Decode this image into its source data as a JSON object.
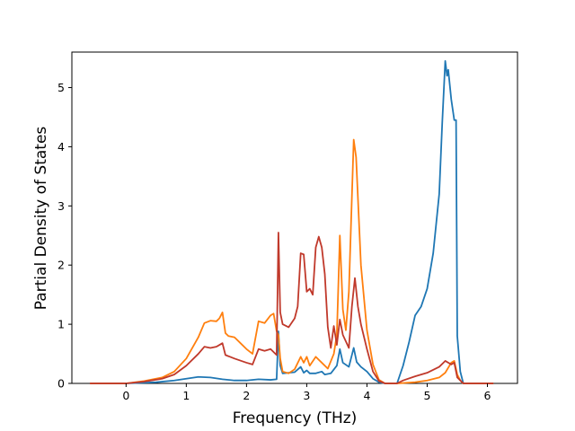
{
  "chart_data": {
    "type": "line",
    "title": "",
    "xlabel": "Frequency (THz)",
    "ylabel": "Partial Density of States",
    "xlim": [
      -0.9,
      6.5
    ],
    "ylim": [
      0,
      5.6
    ],
    "xticks": [
      0,
      1,
      2,
      3,
      4,
      5,
      6
    ],
    "yticks": [
      0,
      1,
      2,
      3,
      4,
      5
    ],
    "grid": false,
    "legend": "none",
    "series": [
      {
        "color": "#1f77b4",
        "points": [
          [
            -0.6,
            0
          ],
          [
            0.0,
            0.0
          ],
          [
            0.5,
            0.02
          ],
          [
            0.8,
            0.05
          ],
          [
            1.0,
            0.08
          ],
          [
            1.2,
            0.11
          ],
          [
            1.4,
            0.1
          ],
          [
            1.6,
            0.07
          ],
          [
            1.8,
            0.05
          ],
          [
            2.0,
            0.05
          ],
          [
            2.2,
            0.07
          ],
          [
            2.4,
            0.06
          ],
          [
            2.5,
            0.07
          ],
          [
            2.53,
            0.88
          ],
          [
            2.56,
            0.3
          ],
          [
            2.6,
            0.17
          ],
          [
            2.8,
            0.19
          ],
          [
            2.9,
            0.28
          ],
          [
            2.95,
            0.18
          ],
          [
            3.0,
            0.22
          ],
          [
            3.05,
            0.17
          ],
          [
            3.15,
            0.17
          ],
          [
            3.25,
            0.2
          ],
          [
            3.3,
            0.15
          ],
          [
            3.4,
            0.17
          ],
          [
            3.5,
            0.3
          ],
          [
            3.55,
            0.58
          ],
          [
            3.6,
            0.35
          ],
          [
            3.7,
            0.28
          ],
          [
            3.78,
            0.6
          ],
          [
            3.83,
            0.36
          ],
          [
            3.9,
            0.28
          ],
          [
            4.0,
            0.2
          ],
          [
            4.1,
            0.08
          ],
          [
            4.2,
            0.02
          ],
          [
            4.3,
            0.0
          ],
          [
            4.5,
            0.0
          ],
          [
            4.6,
            0.3
          ],
          [
            4.7,
            0.7
          ],
          [
            4.8,
            1.15
          ],
          [
            4.9,
            1.3
          ],
          [
            5.0,
            1.6
          ],
          [
            5.1,
            2.2
          ],
          [
            5.2,
            3.2
          ],
          [
            5.25,
            4.4
          ],
          [
            5.3,
            5.45
          ],
          [
            5.33,
            5.2
          ],
          [
            5.35,
            5.3
          ],
          [
            5.4,
            4.8
          ],
          [
            5.45,
            4.45
          ],
          [
            5.48,
            4.45
          ],
          [
            5.5,
            0.8
          ],
          [
            5.55,
            0.2
          ],
          [
            5.6,
            0.0
          ],
          [
            6.1,
            0
          ]
        ]
      },
      {
        "color": "#ff7f0e",
        "points": [
          [
            -0.6,
            0
          ],
          [
            0.0,
            0.0
          ],
          [
            0.3,
            0.04
          ],
          [
            0.6,
            0.1
          ],
          [
            0.8,
            0.2
          ],
          [
            1.0,
            0.42
          ],
          [
            1.2,
            0.78
          ],
          [
            1.3,
            1.02
          ],
          [
            1.4,
            1.06
          ],
          [
            1.5,
            1.05
          ],
          [
            1.55,
            1.1
          ],
          [
            1.6,
            1.2
          ],
          [
            1.65,
            0.85
          ],
          [
            1.7,
            0.8
          ],
          [
            1.8,
            0.78
          ],
          [
            1.9,
            0.68
          ],
          [
            2.0,
            0.58
          ],
          [
            2.1,
            0.5
          ],
          [
            2.2,
            1.05
          ],
          [
            2.3,
            1.02
          ],
          [
            2.4,
            1.15
          ],
          [
            2.45,
            1.18
          ],
          [
            2.5,
            0.88
          ],
          [
            2.53,
            0.82
          ],
          [
            2.56,
            0.42
          ],
          [
            2.6,
            0.2
          ],
          [
            2.7,
            0.17
          ],
          [
            2.8,
            0.24
          ],
          [
            2.9,
            0.45
          ],
          [
            2.95,
            0.35
          ],
          [
            3.0,
            0.45
          ],
          [
            3.05,
            0.3
          ],
          [
            3.15,
            0.45
          ],
          [
            3.25,
            0.35
          ],
          [
            3.35,
            0.25
          ],
          [
            3.45,
            0.5
          ],
          [
            3.5,
            0.82
          ],
          [
            3.55,
            2.5
          ],
          [
            3.6,
            1.25
          ],
          [
            3.65,
            0.9
          ],
          [
            3.7,
            1.55
          ],
          [
            3.78,
            4.12
          ],
          [
            3.82,
            3.82
          ],
          [
            3.9,
            2.0
          ],
          [
            4.0,
            0.9
          ],
          [
            4.1,
            0.32
          ],
          [
            4.2,
            0.06
          ],
          [
            4.3,
            0.0
          ],
          [
            4.5,
            0.0
          ],
          [
            4.8,
            0.02
          ],
          [
            5.0,
            0.05
          ],
          [
            5.2,
            0.1
          ],
          [
            5.3,
            0.18
          ],
          [
            5.4,
            0.35
          ],
          [
            5.45,
            0.38
          ],
          [
            5.5,
            0.15
          ],
          [
            5.55,
            0.05
          ],
          [
            5.6,
            0.0
          ],
          [
            6.1,
            0
          ]
        ]
      },
      {
        "color": "#c0392b",
        "points": [
          [
            -0.6,
            0
          ],
          [
            0.0,
            0.0
          ],
          [
            0.3,
            0.03
          ],
          [
            0.6,
            0.08
          ],
          [
            0.8,
            0.15
          ],
          [
            1.0,
            0.3
          ],
          [
            1.2,
            0.5
          ],
          [
            1.3,
            0.62
          ],
          [
            1.4,
            0.6
          ],
          [
            1.5,
            0.62
          ],
          [
            1.55,
            0.65
          ],
          [
            1.6,
            0.68
          ],
          [
            1.65,
            0.48
          ],
          [
            1.8,
            0.42
          ],
          [
            2.0,
            0.35
          ],
          [
            2.1,
            0.32
          ],
          [
            2.2,
            0.58
          ],
          [
            2.3,
            0.55
          ],
          [
            2.4,
            0.58
          ],
          [
            2.5,
            0.48
          ],
          [
            2.53,
            2.55
          ],
          [
            2.56,
            1.2
          ],
          [
            2.6,
            1.0
          ],
          [
            2.7,
            0.95
          ],
          [
            2.8,
            1.1
          ],
          [
            2.85,
            1.3
          ],
          [
            2.9,
            2.2
          ],
          [
            2.95,
            2.18
          ],
          [
            3.0,
            1.55
          ],
          [
            3.05,
            1.6
          ],
          [
            3.1,
            1.5
          ],
          [
            3.15,
            2.3
          ],
          [
            3.2,
            2.48
          ],
          [
            3.25,
            2.3
          ],
          [
            3.3,
            1.85
          ],
          [
            3.35,
            0.95
          ],
          [
            3.4,
            0.6
          ],
          [
            3.45,
            0.97
          ],
          [
            3.5,
            0.65
          ],
          [
            3.55,
            1.08
          ],
          [
            3.6,
            0.82
          ],
          [
            3.7,
            0.6
          ],
          [
            3.75,
            1.3
          ],
          [
            3.8,
            1.78
          ],
          [
            3.85,
            1.3
          ],
          [
            3.9,
            1.0
          ],
          [
            4.0,
            0.58
          ],
          [
            4.1,
            0.2
          ],
          [
            4.2,
            0.04
          ],
          [
            4.3,
            0.0
          ],
          [
            4.5,
            0.0
          ],
          [
            4.6,
            0.05
          ],
          [
            4.8,
            0.12
          ],
          [
            5.0,
            0.18
          ],
          [
            5.2,
            0.28
          ],
          [
            5.3,
            0.38
          ],
          [
            5.4,
            0.32
          ],
          [
            5.45,
            0.35
          ],
          [
            5.5,
            0.1
          ],
          [
            5.6,
            0.0
          ],
          [
            6.1,
            0
          ]
        ]
      }
    ]
  }
}
